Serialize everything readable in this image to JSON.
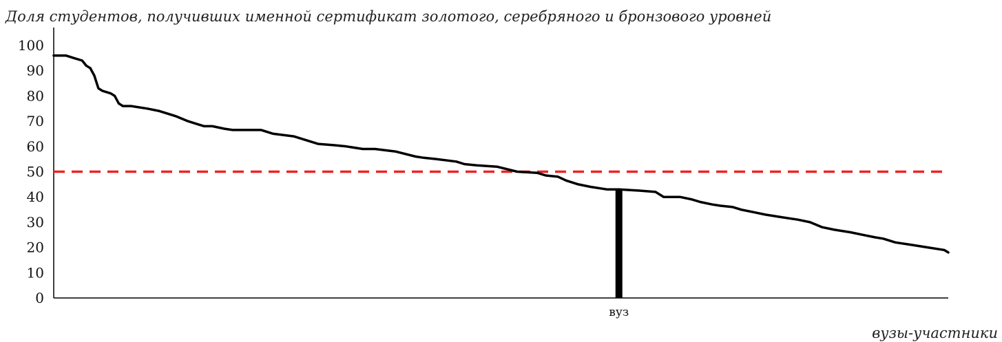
{
  "chart_data": {
    "type": "line",
    "title": "Доля студентов, получивших именной сертификат золотого, серебряного и бронзового уровней",
    "xlabel": "вузы-участники",
    "ylabel": "",
    "ylim": [
      0,
      100
    ],
    "yticks": [
      0,
      10,
      20,
      30,
      40,
      50,
      60,
      70,
      80,
      90,
      100
    ],
    "grid": false,
    "reference_line": {
      "value": 50,
      "color": "#ee2222",
      "style": "dashed"
    },
    "highlight": {
      "label": "вуз",
      "x": 140,
      "value": 43
    },
    "series": [
      {
        "color": "#000000",
        "x": [
          1,
          4,
          6,
          8,
          9,
          10,
          11,
          12,
          13,
          15,
          16,
          17,
          18,
          20,
          24,
          27,
          31,
          34,
          36,
          38,
          40,
          43,
          45,
          48,
          52,
          55,
          60,
          66,
          70,
          73,
          77,
          80,
          85,
          90,
          92,
          95,
          100,
          102,
          105,
          110,
          115,
          120,
          122,
          125,
          127,
          128,
          130,
          133,
          137,
          140,
          145,
          149,
          151,
          155,
          158,
          160,
          163,
          165,
          168,
          170,
          173,
          176,
          180,
          184,
          187,
          190,
          193,
          197,
          200,
          203,
          205,
          208,
          212,
          216,
          220,
          221
        ],
        "values": [
          96,
          96,
          95,
          94,
          92,
          91,
          88,
          83,
          82,
          81,
          80,
          77,
          76,
          76,
          75,
          74,
          72,
          70,
          69,
          68,
          68,
          67,
          66.5,
          66.5,
          66.5,
          65,
          64,
          61,
          60.5,
          60,
          59,
          59,
          58,
          56,
          55.5,
          55,
          54,
          53,
          52.5,
          52,
          50,
          49.5,
          48.5,
          48,
          46.5,
          46,
          45,
          44,
          43,
          43,
          42.5,
          42,
          40,
          40,
          39,
          38,
          37,
          36.5,
          36,
          35,
          34,
          33,
          32,
          31,
          30,
          28,
          27,
          26,
          25,
          24,
          23.5,
          22,
          21,
          20,
          19,
          18
        ]
      }
    ]
  }
}
